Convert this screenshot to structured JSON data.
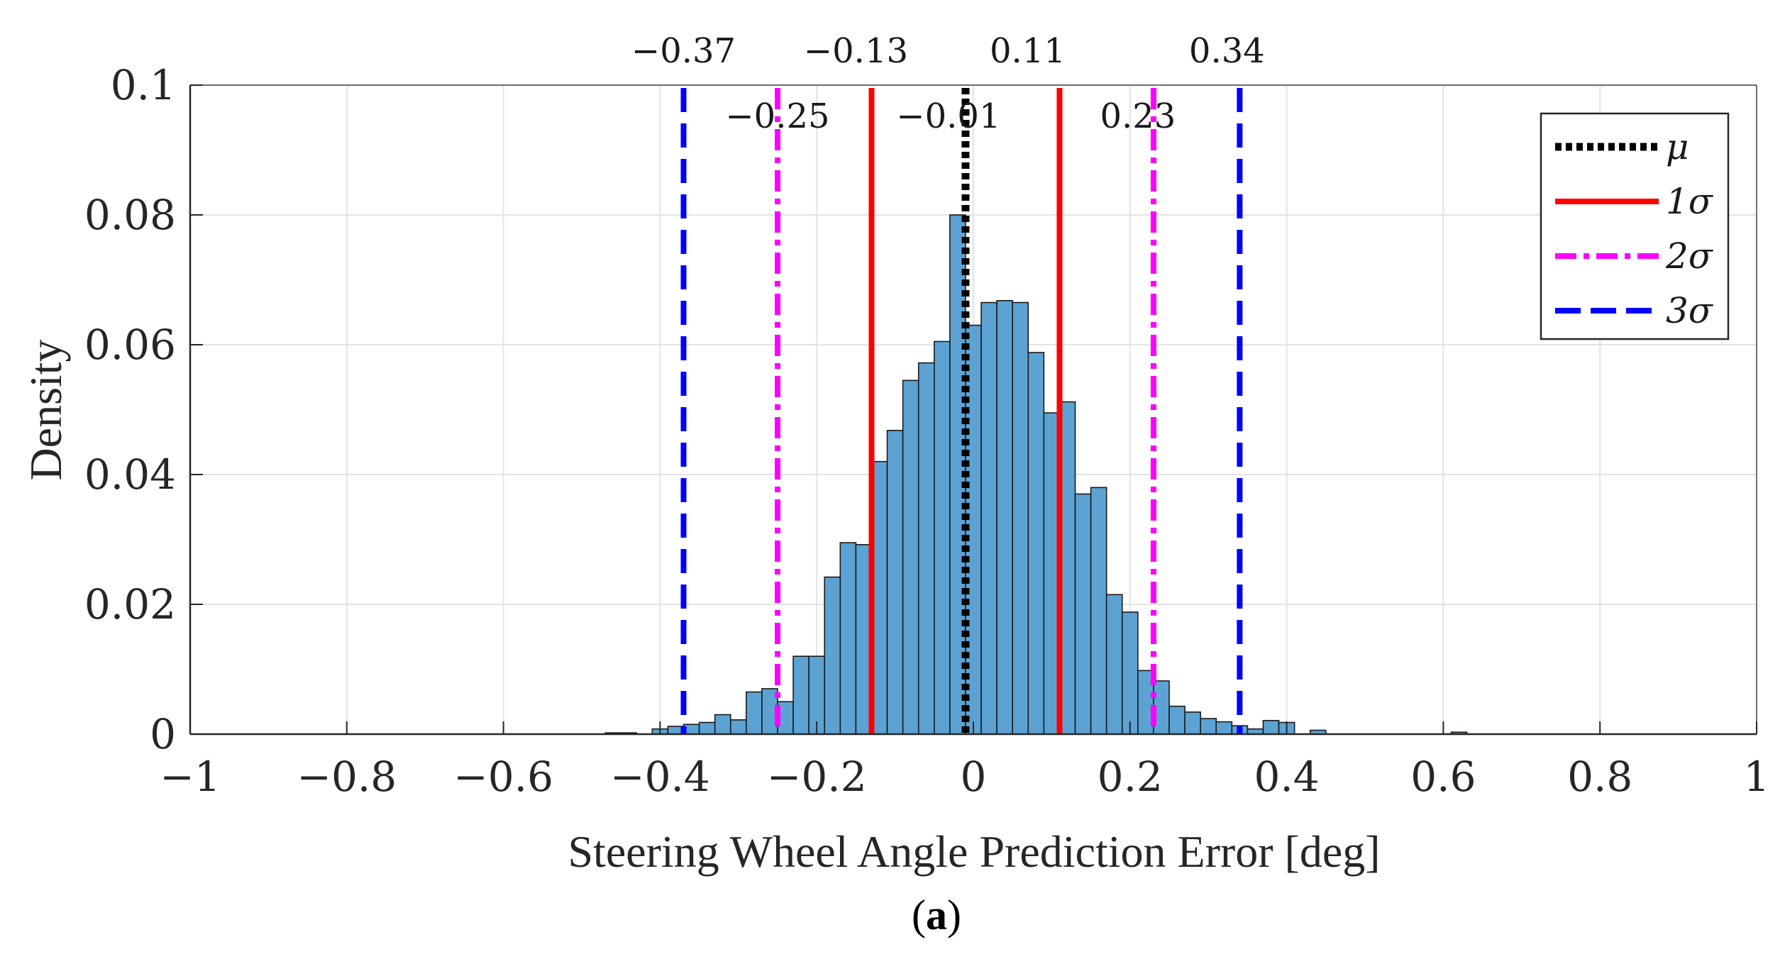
{
  "chart_data": {
    "type": "bar",
    "subtype": "histogram",
    "title": "",
    "xlabel": "Steering Wheel Angle Prediction Error [deg]",
    "ylabel": "Density",
    "xlim": [
      -1,
      1
    ],
    "ylim": [
      0,
      0.1
    ],
    "grid": true,
    "x_ticks": [
      -1,
      -0.8,
      -0.6,
      -0.4,
      -0.2,
      0,
      0.2,
      0.4,
      0.6,
      0.8,
      1
    ],
    "x_tick_labels": [
      "−1",
      "−0.8",
      "−0.6",
      "−0.4",
      "−0.2",
      "0",
      "0.2",
      "0.4",
      "0.6",
      "0.8",
      "1"
    ],
    "y_ticks": [
      0,
      0.02,
      0.04,
      0.06,
      0.08,
      0.1
    ],
    "y_tick_labels": [
      "0",
      "0.02",
      "0.04",
      "0.06",
      "0.08",
      "0.1"
    ],
    "bin_width": 0.02,
    "bin_starts": [
      -0.47,
      -0.45,
      -0.41,
      -0.39,
      -0.37,
      -0.35,
      -0.33,
      -0.31,
      -0.29,
      -0.27,
      -0.25,
      -0.23,
      -0.21,
      -0.19,
      -0.17,
      -0.15,
      -0.13,
      -0.11,
      -0.09,
      -0.07,
      -0.05,
      -0.03,
      -0.01,
      0.01,
      0.03,
      0.05,
      0.07,
      0.09,
      0.11,
      0.13,
      0.15,
      0.17,
      0.19,
      0.21,
      0.23,
      0.25,
      0.27,
      0.29,
      0.31,
      0.33,
      0.35,
      0.37,
      0.39,
      0.43,
      0.61
    ],
    "values": [
      0.0002,
      0.0002,
      0.0008,
      0.0012,
      0.0015,
      0.0018,
      0.003,
      0.0022,
      0.0065,
      0.007,
      0.005,
      0.012,
      0.012,
      0.0242,
      0.0295,
      0.0292,
      0.042,
      0.0468,
      0.0545,
      0.0572,
      0.0605,
      0.08,
      0.063,
      0.0665,
      0.0668,
      0.0665,
      0.0588,
      0.0495,
      0.0512,
      0.037,
      0.038,
      0.0215,
      0.0188,
      0.0098,
      0.0082,
      0.0043,
      0.0034,
      0.0024,
      0.0019,
      0.0013,
      0.0008,
      0.0021,
      0.0018,
      0.0006,
      0.0003
    ],
    "bar_color": "#5ca3d3",
    "bar_edge": "#1a1a1a",
    "reference_lines": [
      {
        "key": "mu",
        "value": -0.01,
        "label": "−0.01",
        "color": "#000000",
        "style": "dotted"
      },
      {
        "key": "s1_low",
        "value": -0.13,
        "label": "−0.13",
        "color": "#ff0000",
        "style": "solid"
      },
      {
        "key": "s1_high",
        "value": 0.11,
        "label": "0.11",
        "color": "#ff0000",
        "style": "solid"
      },
      {
        "key": "s2_low",
        "value": -0.25,
        "label": "−0.25",
        "color": "#ff00ff",
        "style": "dashdot"
      },
      {
        "key": "s2_high",
        "value": 0.23,
        "label": "0.23",
        "color": "#ff00ff",
        "style": "dashdot"
      },
      {
        "key": "s3_low",
        "value": -0.37,
        "label": "−0.37",
        "color": "#0000ff",
        "style": "dashed"
      },
      {
        "key": "s3_high",
        "value": 0.34,
        "label": "0.34",
        "color": "#0000ff",
        "style": "dashed"
      }
    ],
    "legend": {
      "location": "top-right",
      "entries": [
        {
          "label": "μ",
          "color": "#000000",
          "style": "dotted"
        },
        {
          "label": "1σ",
          "color": "#ff0000",
          "style": "solid"
        },
        {
          "label": "2σ",
          "color": "#ff00ff",
          "style": "dashdot"
        },
        {
          "label": "3σ",
          "color": "#0000ff",
          "style": "dashed"
        }
      ]
    }
  },
  "caption": {
    "open": "(",
    "letter": "a",
    "close": ")"
  }
}
